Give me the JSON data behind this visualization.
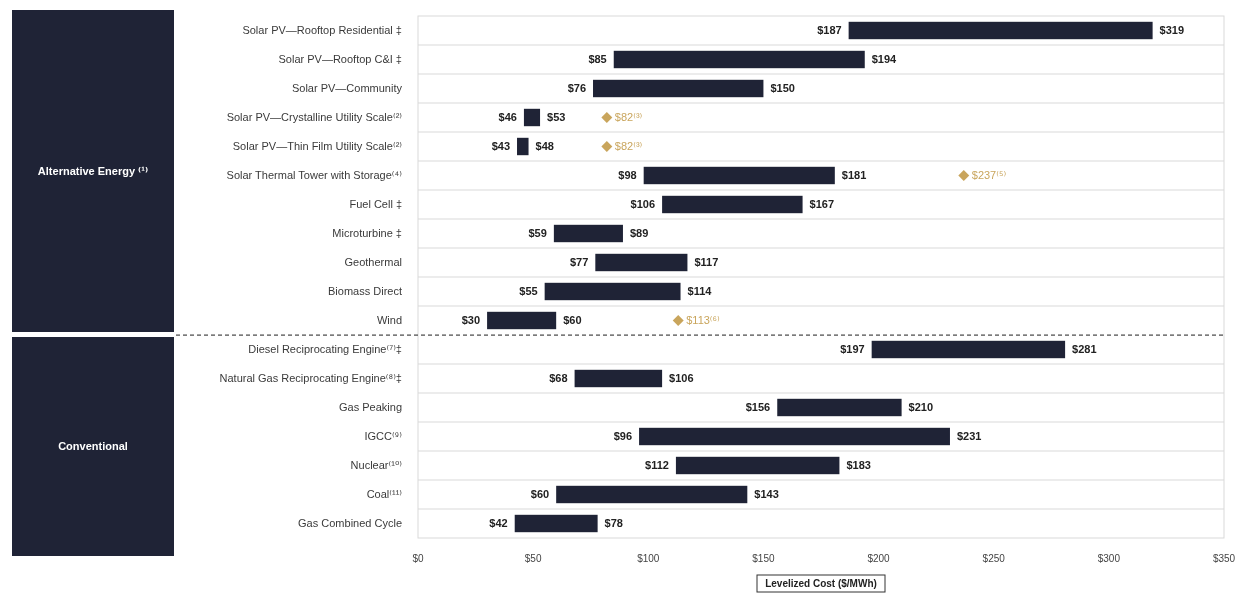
{
  "chart_data": {
    "type": "bar",
    "orientation": "horizontal",
    "categories": [
      "Solar PV—Rooftop Residential ‡",
      "Solar PV—Rooftop C&I ‡",
      "Solar PV—Community",
      "Solar PV—Crystalline Utility Scale⁽²⁾",
      "Solar PV—Thin Film Utility Scale⁽²⁾",
      "Solar Thermal Tower with Storage⁽⁴⁾",
      "Fuel Cell ‡",
      "Microturbine ‡",
      "Geothermal",
      "Biomass Direct",
      "Wind",
      "Diesel Reciprocating Engine⁽⁷⁾‡",
      "Natural Gas Reciprocating Engine⁽⁸⁾‡",
      "Gas Peaking",
      "IGCC⁽⁹⁾",
      "Nuclear⁽¹⁰⁾",
      "Coal⁽¹¹⁾",
      "Gas Combined Cycle"
    ],
    "series": [
      {
        "type": "bar",
        "color": "#1f2336",
        "base": [
          187,
          85,
          76,
          46,
          43,
          98,
          106,
          59,
          77,
          55,
          30,
          197,
          68,
          156,
          96,
          112,
          60,
          42
        ],
        "values": [
          132,
          109,
          74,
          7,
          5,
          83,
          61,
          30,
          40,
          59,
          30,
          84,
          38,
          54,
          135,
          71,
          83,
          36
        ]
      },
      {
        "type": "scatter",
        "color": "#c9a55c",
        "marker": "diamond",
        "x": [
          "Solar PV—Crystalline Utility Scale⁽²⁾",
          "Solar PV—Thin Film Utility Scale⁽²⁾",
          "Solar Thermal Tower with Storage⁽⁴⁾",
          "Wind"
        ],
        "values": [
          82,
          82,
          237,
          113
        ],
        "value_labels": [
          "$82⁽³⁾",
          "$82⁽³⁾",
          "$237⁽⁵⁾",
          "$113⁽⁶⁾"
        ]
      }
    ],
    "xlim": [
      0,
      350
    ],
    "xticks": [
      {
        "value": 0,
        "label": "$0"
      },
      {
        "value": 50,
        "label": "$50"
      },
      {
        "value": 100,
        "label": "$100"
      },
      {
        "value": 150,
        "label": "$150"
      },
      {
        "value": 200,
        "label": "$200"
      },
      {
        "value": 250,
        "label": "$250"
      },
      {
        "value": 300,
        "label": "$300"
      },
      {
        "value": 350,
        "label": "$350"
      }
    ],
    "xlabel": "Levelized Cost ($/MWh)",
    "grid": "y",
    "annotations": [
      "Alternative Energy ⁽¹⁾",
      "Conventional",
      {
        "text": "$187",
        "x": 187,
        "y": "Solar PV—Rooftop Residential ‡"
      },
      {
        "text": "$319",
        "x": 319,
        "y": "Solar PV—Rooftop Residential ‡"
      },
      {
        "text": "$85",
        "x": 85,
        "y": "Solar PV—Rooftop C&I ‡"
      },
      {
        "text": "$194",
        "x": 194,
        "y": "Solar PV—Rooftop C&I ‡"
      },
      {
        "text": "$76",
        "x": 76,
        "y": "Solar PV—Community"
      },
      {
        "text": "$150",
        "x": 150,
        "y": "Solar PV—Community"
      },
      {
        "text": "$46",
        "x": 46,
        "y": "Solar PV—Crystalline Utility Scale⁽²⁾"
      },
      {
        "text": "$53",
        "x": 53,
        "y": "Solar PV—Crystalline Utility Scale⁽²⁾"
      },
      {
        "text": "$43",
        "x": 43,
        "y": "Solar PV—Thin Film Utility Scale⁽²⁾"
      },
      {
        "text": "$48",
        "x": 48,
        "y": "Solar PV—Thin Film Utility Scale⁽²⁾"
      },
      {
        "text": "$98",
        "x": 98,
        "y": "Solar Thermal Tower with Storage⁽⁴⁾"
      },
      {
        "text": "$181",
        "x": 181,
        "y": "Solar Thermal Tower with Storage⁽⁴⁾"
      },
      {
        "text": "$106",
        "x": 106,
        "y": "Fuel Cell ‡"
      },
      {
        "text": "$167",
        "x": 167,
        "y": "Fuel Cell ‡"
      },
      {
        "text": "$59",
        "x": 59,
        "y": "Microturbine ‡"
      },
      {
        "text": "$89",
        "x": 89,
        "y": "Microturbine ‡"
      },
      {
        "text": "$77",
        "x": 77,
        "y": "Geothermal"
      },
      {
        "text": "$117",
        "x": 117,
        "y": "Geothermal"
      },
      {
        "text": "$55",
        "x": 55,
        "y": "Biomass Direct"
      },
      {
        "text": "$114",
        "x": 114,
        "y": "Biomass Direct"
      },
      {
        "text": "$30",
        "x": 30,
        "y": "Wind"
      },
      {
        "text": "$60",
        "x": 60,
        "y": "Wind"
      },
      {
        "text": "$197",
        "x": 197,
        "y": "Diesel Reciprocating Engine⁽⁷⁾‡"
      },
      {
        "text": "$281",
        "x": 281,
        "y": "Diesel Reciprocating Engine⁽⁷⁾‡"
      },
      {
        "text": "$68",
        "x": 68,
        "y": "Natural Gas Reciprocating Engine⁽⁸⁾‡"
      },
      {
        "text": "$106",
        "x": 106,
        "y": "Natural Gas Reciprocating Engine⁽⁸⁾‡"
      },
      {
        "text": "$156",
        "x": 156,
        "y": "Gas Peaking"
      },
      {
        "text": "$210",
        "x": 210,
        "y": "Gas Peaking"
      },
      {
        "text": "$96",
        "x": 96,
        "y": "IGCC⁽⁹⁾"
      },
      {
        "text": "$231",
        "x": 231,
        "y": "IGCC⁽⁹⁾"
      },
      {
        "text": "$112",
        "x": 112,
        "y": "Nuclear⁽¹⁰⁾"
      },
      {
        "text": "$183",
        "x": 183,
        "y": "Nuclear⁽¹⁰⁾"
      },
      {
        "text": "$60",
        "x": 60,
        "y": "Coal⁽¹¹⁾"
      },
      {
        "text": "$143",
        "x": 143,
        "y": "Coal⁽¹¹⁾"
      },
      {
        "text": "$42",
        "x": 42,
        "y": "Gas Combined Cycle"
      },
      {
        "text": "$78",
        "x": 78,
        "y": "Gas Combined Cycle"
      }
    ]
  }
}
